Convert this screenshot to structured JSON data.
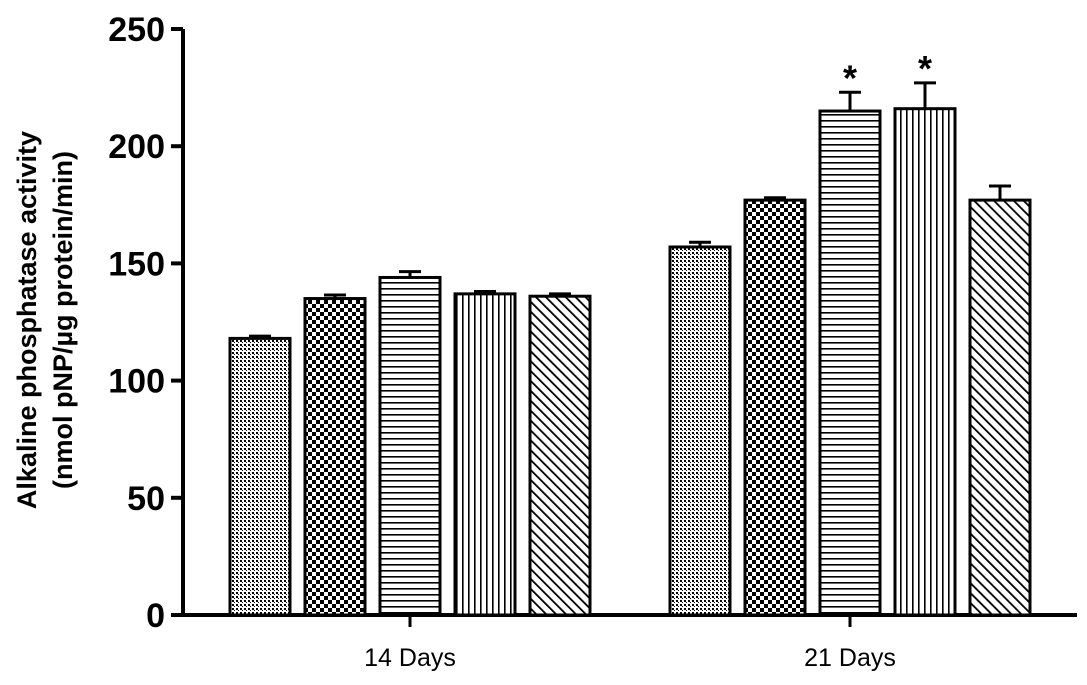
{
  "chart_data": {
    "type": "bar",
    "ylabel_lines": [
      "Alkaline phosphatase activity",
      "(nmol pNP/µg protein/min)"
    ],
    "xlabel": "",
    "ylim": [
      0,
      250
    ],
    "yticks": [
      "0",
      "50",
      "100",
      "150",
      "200",
      "250"
    ],
    "grid": false,
    "legend": "none",
    "categories": [
      "14 Days",
      "21 Days"
    ],
    "series": [
      {
        "values": [
          118,
          157
        ],
        "errors": [
          1,
          2
        ],
        "significance": [
          "",
          ""
        ],
        "pattern": "fine-dots"
      },
      {
        "values": [
          135,
          177
        ],
        "errors": [
          1.5,
          1
        ],
        "significance": [
          "",
          ""
        ],
        "pattern": "checker"
      },
      {
        "values": [
          144,
          215
        ],
        "errors": [
          2.5,
          8
        ],
        "significance": [
          "",
          "*"
        ],
        "pattern": "horizontal-lines"
      },
      {
        "values": [
          137,
          216
        ],
        "errors": [
          1,
          11
        ],
        "significance": [
          "",
          "*"
        ],
        "pattern": "vertical-lines"
      },
      {
        "values": [
          136,
          177
        ],
        "errors": [
          1,
          6
        ],
        "significance": [
          "",
          ""
        ],
        "pattern": "diagonal-lines"
      }
    ]
  }
}
